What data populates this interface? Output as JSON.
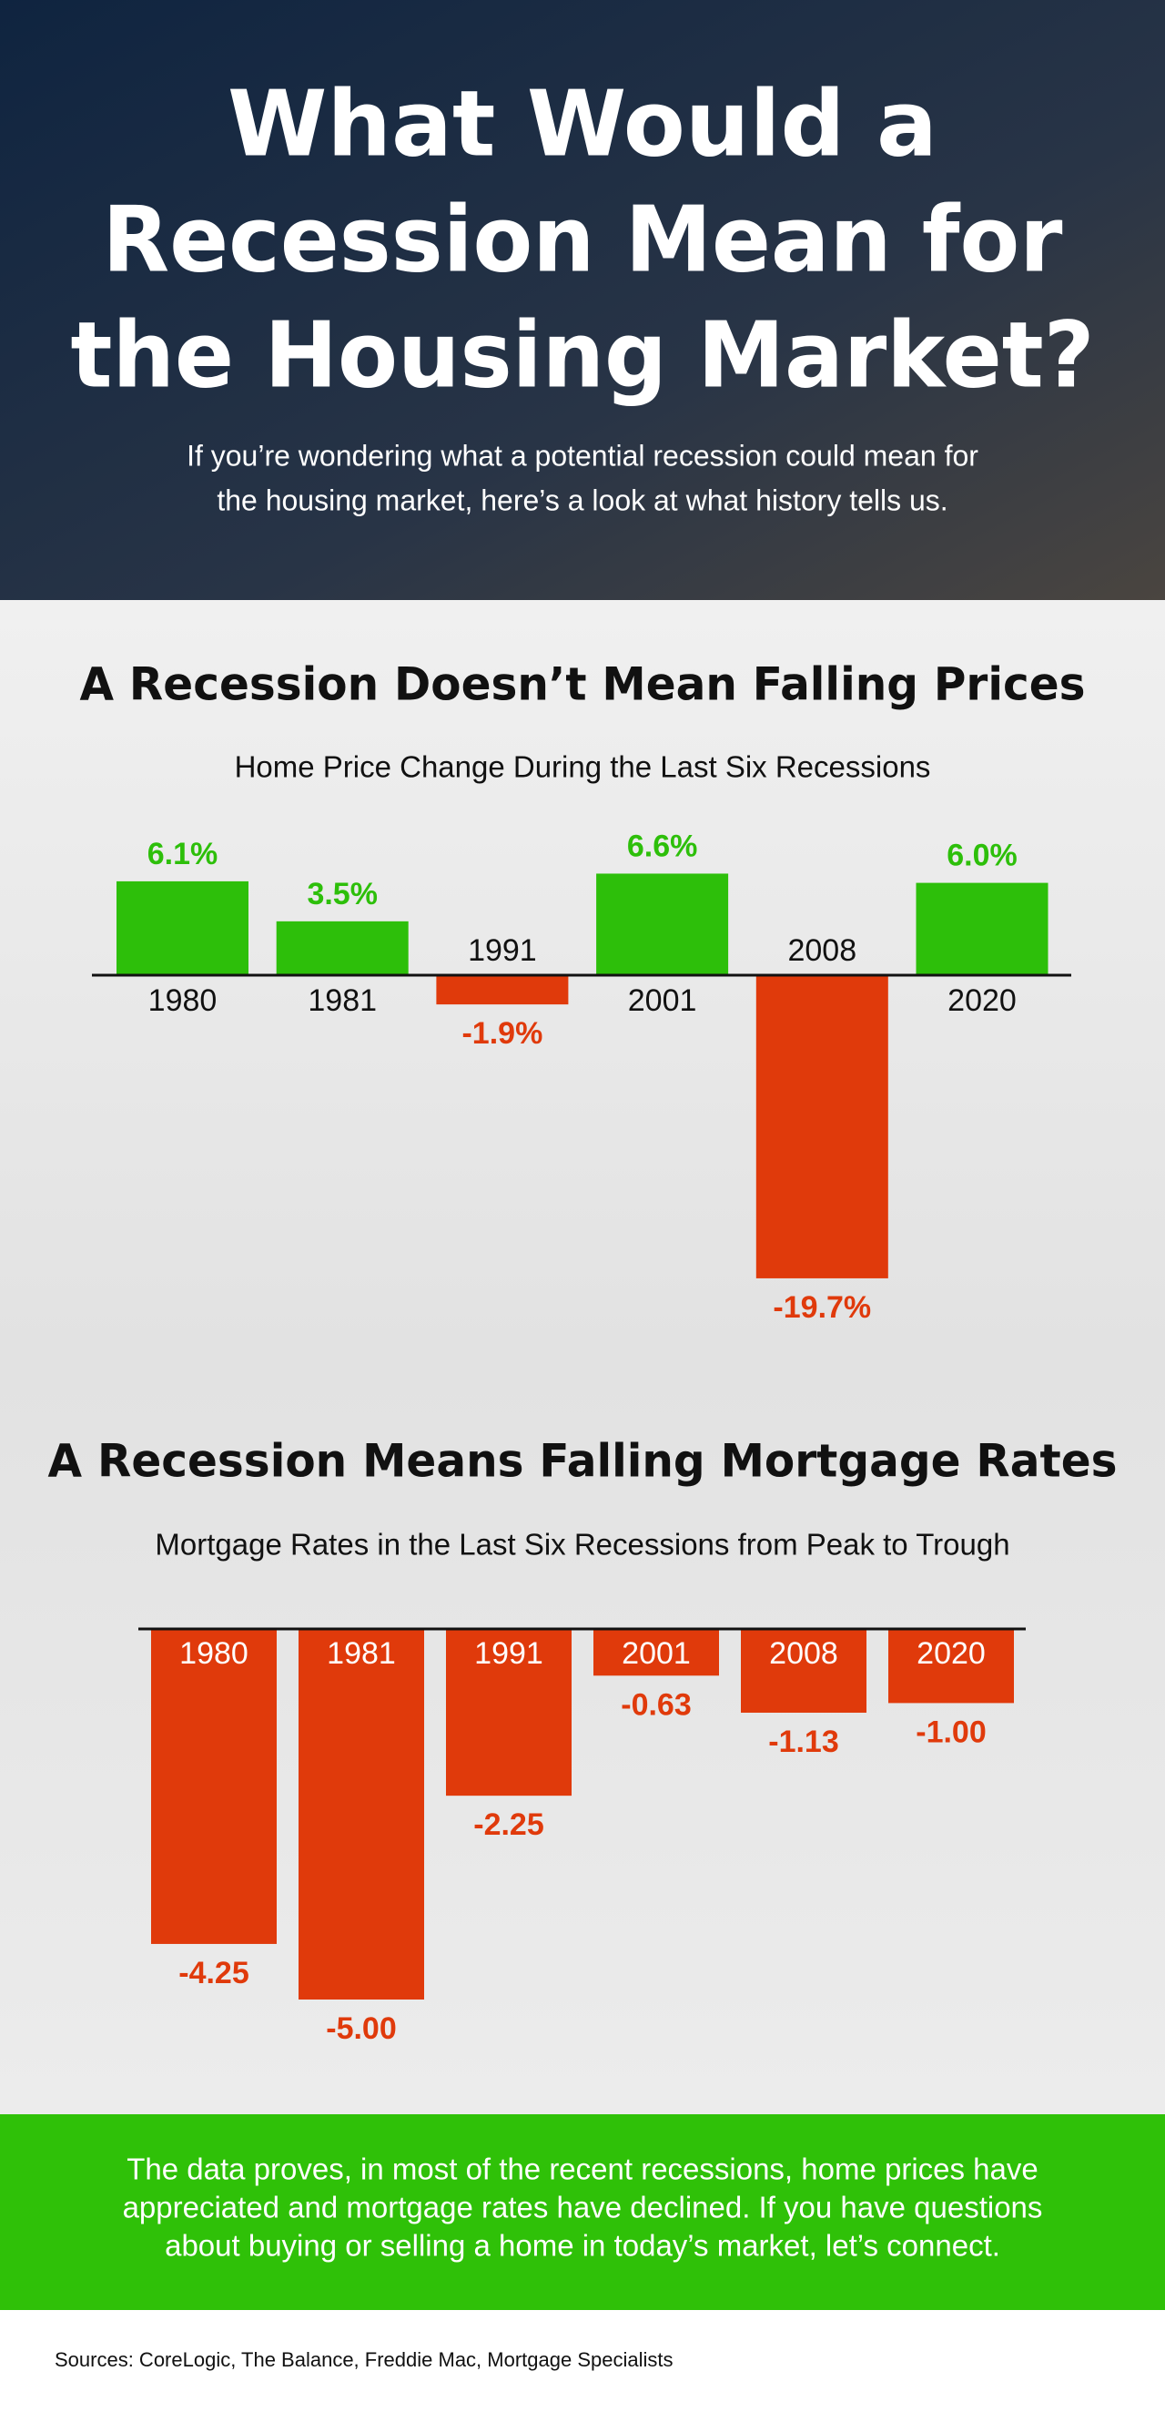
{
  "header": {
    "title": [
      "What Would a",
      "Recession Mean for",
      "the Housing Market?"
    ],
    "subtitle": [
      "If you’re wondering what a potential recession could mean for",
      "the housing market, here’s a look at what history tells us."
    ]
  },
  "chart_data": [
    {
      "type": "bar",
      "title": "A Recession Doesn’t Mean Falling Prices",
      "subtitle": "Home Price Change During the Last Six Recessions",
      "categories": [
        "1980",
        "1981",
        "1991",
        "2001",
        "2008",
        "2020"
      ],
      "values": [
        6.1,
        3.5,
        -1.9,
        6.6,
        -19.7,
        6.0
      ],
      "value_labels": [
        "6.1%",
        "3.5%",
        "-1.9%",
        "6.6%",
        "-19.7%",
        "6.0%"
      ],
      "color": "#2dbf0a",
      "negative_color": "#e03a0b"
    },
    {
      "type": "bar",
      "title": "A Recession Means Falling Mortgage Rates",
      "subtitle": "Mortgage Rates in the Last Six Recessions from Peak to Trough",
      "categories": [
        "1980",
        "1981",
        "1991",
        "2001",
        "2008",
        "2020"
      ],
      "values": [
        -4.25,
        -5.0,
        -2.25,
        -0.63,
        -1.13,
        -1.0
      ],
      "value_labels": [
        "-4.25",
        "-5.00",
        "-2.25",
        "-0.63",
        "-1.13",
        "-1.00"
      ],
      "color": "#2dbf0a",
      "negative_color": "#e03a0b"
    }
  ],
  "footer": {
    "text": [
      "The data proves, in most of the recent recessions, home prices have",
      "appreciated and mortgage rates have declined. If you have questions",
      "about buying or selling a home in today’s market, let’s connect."
    ],
    "sources": "Sources: CoreLogic, The Balance, Freddie Mac, Mortgage Specialists"
  }
}
